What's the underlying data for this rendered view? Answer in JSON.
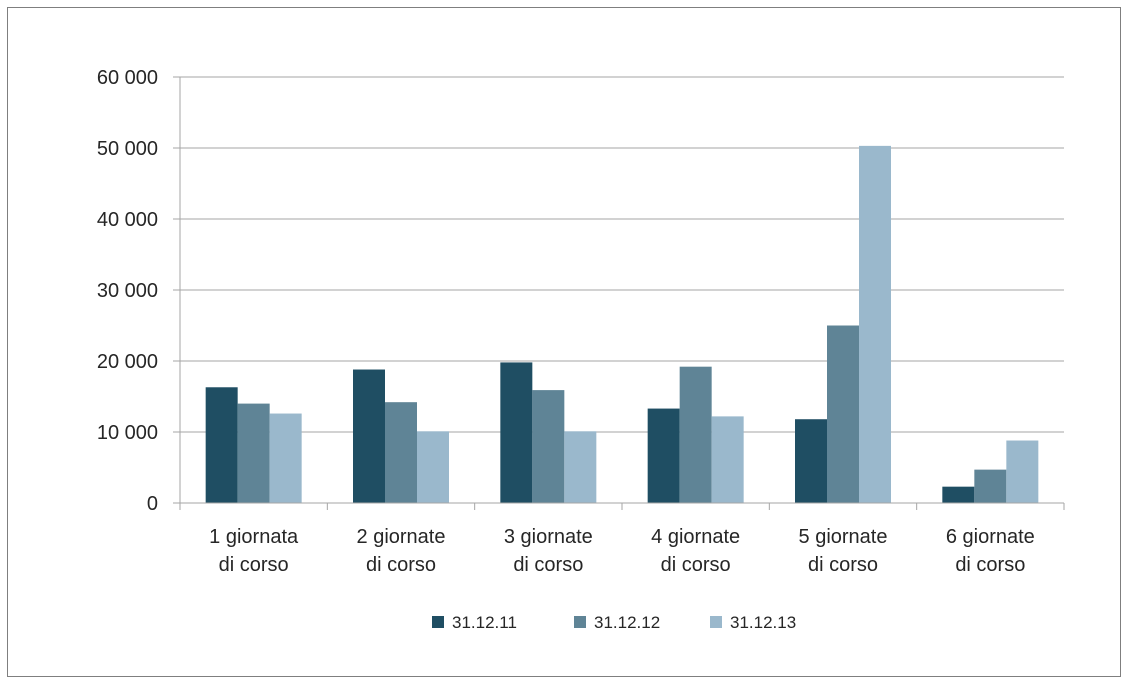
{
  "chart_data": {
    "type": "bar",
    "title": "",
    "xlabel": "",
    "ylabel": "",
    "categories": [
      [
        "1 giornata",
        "di corso"
      ],
      [
        "2 giornate",
        "di corso"
      ],
      [
        "3 giornate",
        "di corso"
      ],
      [
        "4 giornate",
        "di corso"
      ],
      [
        "5 giornate",
        "di corso"
      ],
      [
        "6 giornate",
        "di corso"
      ]
    ],
    "series": [
      {
        "name": "31.12.11",
        "color": "#1f4e63",
        "values": [
          16300,
          18800,
          19800,
          13300,
          11800,
          2300
        ]
      },
      {
        "name": "31.12.12",
        "color": "#5f8496",
        "values": [
          14000,
          14200,
          15900,
          19200,
          25000,
          4700
        ]
      },
      {
        "name": "31.12.13",
        "color": "#9ab8cc",
        "values": [
          12600,
          10100,
          10100,
          12200,
          50300,
          8800
        ]
      }
    ],
    "ylim": [
      0,
      60000
    ],
    "yticks": [
      0,
      10000,
      20000,
      30000,
      40000,
      50000,
      60000
    ],
    "ytick_labels": [
      "0",
      "10 000",
      "20 000",
      "30 000",
      "40 000",
      "50 000",
      "60 000"
    ],
    "grid": true,
    "legend_position": "bottom"
  }
}
